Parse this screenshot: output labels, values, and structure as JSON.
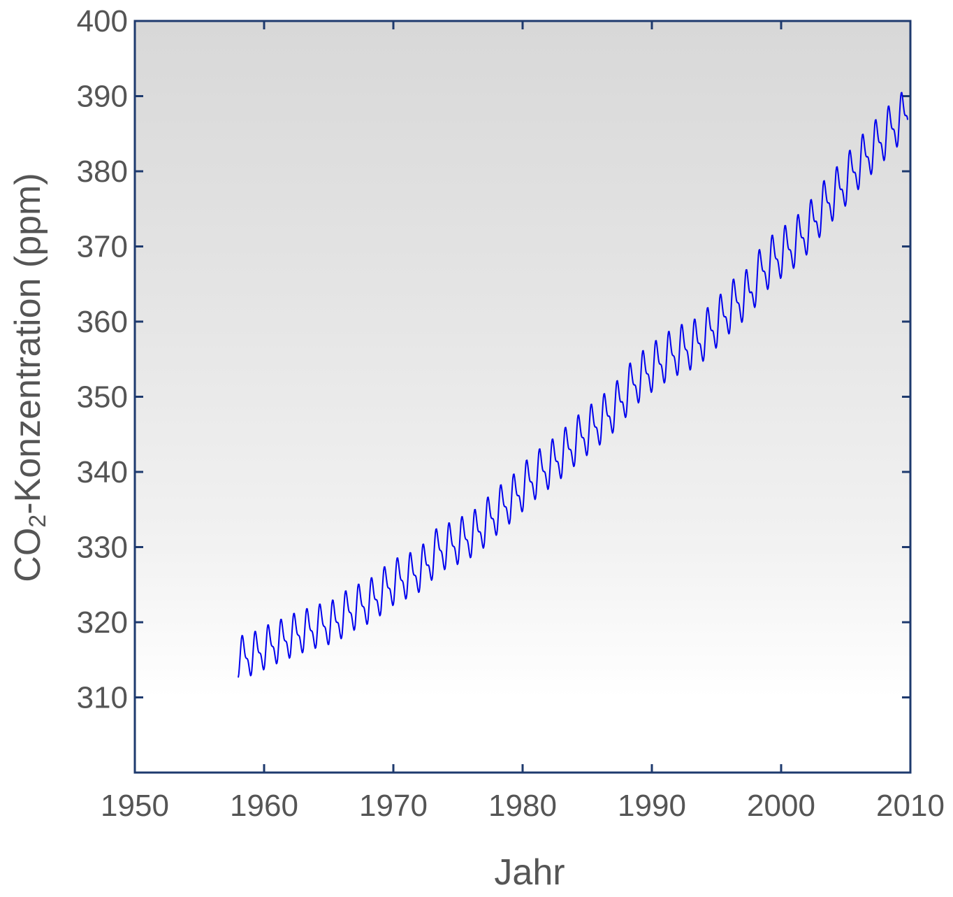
{
  "chart_data": {
    "type": "line",
    "title": "",
    "xlabel": "Jahr",
    "ylabel_parts": {
      "prefix": "CO",
      "subscript": "2",
      "suffix": "-Konzentration (ppm)"
    },
    "xlim": [
      1950,
      2010
    ],
    "ylim": [
      300,
      400
    ],
    "x_ticks": [
      "1950",
      "1960",
      "1970",
      "1980",
      "1990",
      "2000",
      "2010"
    ],
    "y_ticks": [
      "310",
      "320",
      "330",
      "340",
      "350",
      "360",
      "370",
      "380",
      "390",
      "400"
    ],
    "grid": false,
    "legend": "none",
    "series": [
      {
        "color": "#0000ee",
        "x": [
          1958.0,
          1959.0,
          1960.0,
          1961.0,
          1962.0,
          1963.0,
          1964.0,
          1965.0,
          1966.0,
          1967.0,
          1968.0,
          1969.0,
          1970.0,
          1971.0,
          1972.0,
          1973.0,
          1974.0,
          1975.0,
          1976.0,
          1977.0,
          1978.0,
          1979.0,
          1980.0,
          1981.0,
          1982.0,
          1983.0,
          1984.0,
          1985.0,
          1986.0,
          1987.0,
          1988.0,
          1989.0,
          1990.0,
          1991.0,
          1992.0,
          1993.0,
          1994.0,
          1995.0,
          1996.0,
          1997.0,
          1998.0,
          1999.0,
          2000.0,
          2001.0,
          2002.0,
          2003.0,
          2004.0,
          2005.0,
          2006.0,
          2007.0,
          2008.0,
          2009.0
        ],
        "annual_mean": [
          315.3,
          316.0,
          316.9,
          317.6,
          318.4,
          319.0,
          319.6,
          320.0,
          321.4,
          322.2,
          323.0,
          324.6,
          325.7,
          326.3,
          327.5,
          329.7,
          330.2,
          331.1,
          332.0,
          333.8,
          335.4,
          336.8,
          338.7,
          340.1,
          341.4,
          343.0,
          344.6,
          346.0,
          347.4,
          349.2,
          351.6,
          353.1,
          354.4,
          355.6,
          356.4,
          357.1,
          358.8,
          360.6,
          362.6,
          363.7,
          366.7,
          368.4,
          369.6,
          371.1,
          373.2,
          375.8,
          377.5,
          379.8,
          381.9,
          383.8,
          385.6,
          387.4
        ],
        "seasonal_amplitude": [
          6.0,
          6.0,
          6.0,
          6.0,
          6.0,
          6.0,
          6.0,
          6.2,
          6.2,
          6.2,
          6.3,
          6.3,
          6.3,
          6.3,
          6.4,
          6.4,
          6.4,
          6.4,
          6.5,
          6.5,
          6.5,
          6.5,
          6.6,
          6.6,
          6.6,
          6.6,
          6.7,
          6.7,
          6.7,
          6.7,
          6.8,
          6.8,
          6.8,
          6.8,
          6.9,
          6.9,
          6.9,
          6.9,
          7.0,
          7.0,
          7.0,
          7.0,
          7.0,
          7.0,
          7.0,
          7.0,
          7.0,
          7.0,
          7.0,
          7.0,
          7.0,
          7.0
        ],
        "x_end": 2009.8
      }
    ]
  }
}
